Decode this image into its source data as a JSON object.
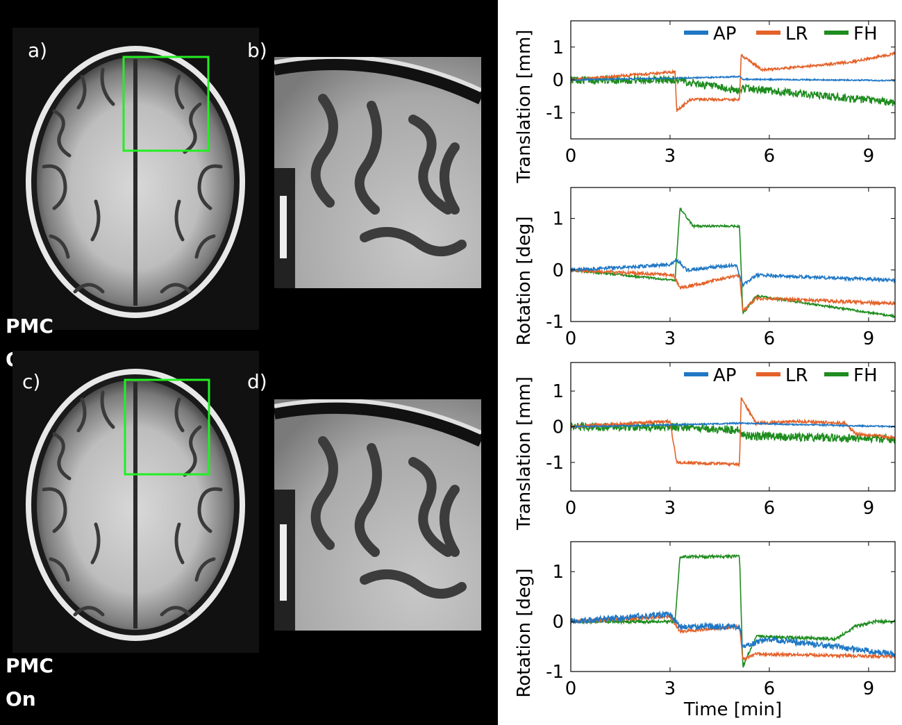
{
  "figure": {
    "panel_labels": [
      "a)",
      "b)",
      "c)",
      "d)"
    ],
    "pmc_off": {
      "line1": "PMC",
      "line2": "Off"
    },
    "pmc_on": {
      "line1": "PMC",
      "line2": "On"
    },
    "roi_color": "#22ee22"
  },
  "chart_data": [
    {
      "id": "off-translation",
      "type": "line",
      "ylabel": "Translation [mm]",
      "xlabel": "",
      "xlim": [
        0,
        9.8
      ],
      "ylim": [
        -1.8,
        1.8
      ],
      "xticks": [
        0,
        3,
        6,
        9
      ],
      "yticks": [
        -1,
        0,
        1
      ],
      "legend": true,
      "legend_position": "top",
      "series": [
        {
          "name": "AP",
          "color": "#1f77c4",
          "noise": 0.02,
          "points": [
            [
              0,
              0
            ],
            [
              3,
              0.05
            ],
            [
              4.5,
              0.08
            ],
            [
              5.1,
              0.1
            ],
            [
              5.2,
              0.02
            ],
            [
              9.8,
              -0.02
            ]
          ]
        },
        {
          "name": "LR",
          "color": "#e4622a",
          "noise": 0.04,
          "points": [
            [
              0,
              0
            ],
            [
              3.15,
              0.25
            ],
            [
              3.2,
              -0.95
            ],
            [
              3.6,
              -0.6
            ],
            [
              5.1,
              -0.6
            ],
            [
              5.15,
              0.75
            ],
            [
              5.8,
              0.3
            ],
            [
              7,
              0.4
            ],
            [
              8.5,
              0.55
            ],
            [
              9.8,
              0.8
            ]
          ]
        },
        {
          "name": "FH",
          "color": "#1e8c1e",
          "noise": 0.12,
          "points": [
            [
              0,
              0
            ],
            [
              3.2,
              0
            ],
            [
              5.1,
              -0.35
            ],
            [
              5.2,
              -0.25
            ],
            [
              9.8,
              -0.7
            ]
          ]
        }
      ]
    },
    {
      "id": "off-rotation",
      "type": "line",
      "ylabel": "Rotation [deg]",
      "xlabel": "",
      "xlim": [
        0,
        9.8
      ],
      "ylim": [
        -1,
        1.6
      ],
      "xticks": [
        0,
        3,
        6,
        9
      ],
      "yticks": [
        -1,
        0,
        1
      ],
      "legend": false,
      "series": [
        {
          "name": "AP",
          "color": "#1f77c4",
          "noise": 0.03,
          "points": [
            [
              0,
              0
            ],
            [
              3,
              0.1
            ],
            [
              3.2,
              0.2
            ],
            [
              3.5,
              0
            ],
            [
              5,
              0.1
            ],
            [
              5.2,
              -0.3
            ],
            [
              5.6,
              -0.1
            ],
            [
              9.8,
              -0.2
            ]
          ]
        },
        {
          "name": "LR",
          "color": "#e4622a",
          "noise": 0.03,
          "points": [
            [
              0,
              0
            ],
            [
              3.1,
              -0.1
            ],
            [
              3.3,
              -0.35
            ],
            [
              5.1,
              -0.1
            ],
            [
              5.2,
              -0.8
            ],
            [
              5.6,
              -0.55
            ],
            [
              9.8,
              -0.65
            ]
          ]
        },
        {
          "name": "FH",
          "color": "#1e8c1e",
          "noise": 0.02,
          "points": [
            [
              0,
              0
            ],
            [
              3.15,
              -0.2
            ],
            [
              3.3,
              1.2
            ],
            [
              3.7,
              0.85
            ],
            [
              5.1,
              0.85
            ],
            [
              5.2,
              -0.85
            ],
            [
              5.6,
              -0.5
            ],
            [
              9.8,
              -0.9
            ]
          ]
        }
      ]
    },
    {
      "id": "on-translation",
      "type": "line",
      "ylabel": "Translation [mm]",
      "xlabel": "",
      "xlim": [
        0,
        9.8
      ],
      "ylim": [
        -1.8,
        1.8
      ],
      "xticks": [
        0,
        3,
        6,
        9
      ],
      "yticks": [
        -1,
        0,
        1
      ],
      "legend": true,
      "legend_position": "top",
      "series": [
        {
          "name": "AP",
          "color": "#1f77c4",
          "noise": 0.02,
          "points": [
            [
              0,
              0
            ],
            [
              3,
              0.05
            ],
            [
              5.1,
              0.1
            ],
            [
              9.8,
              0
            ]
          ]
        },
        {
          "name": "LR",
          "color": "#e4622a",
          "noise": 0.04,
          "points": [
            [
              0,
              0
            ],
            [
              3,
              0.15
            ],
            [
              3.2,
              -1.0
            ],
            [
              5.1,
              -1.05
            ],
            [
              5.15,
              0.8
            ],
            [
              5.6,
              0.1
            ],
            [
              7,
              0.15
            ],
            [
              8.3,
              0.1
            ],
            [
              8.6,
              -0.2
            ],
            [
              9.8,
              -0.3
            ]
          ]
        },
        {
          "name": "FH",
          "color": "#1e8c1e",
          "noise": 0.12,
          "points": [
            [
              0,
              0
            ],
            [
              3.2,
              0
            ],
            [
              5.1,
              -0.1
            ],
            [
              5.2,
              -0.25
            ],
            [
              9.8,
              -0.35
            ]
          ]
        }
      ]
    },
    {
      "id": "on-rotation",
      "type": "line",
      "ylabel": "Rotation [deg]",
      "xlabel": "Time [min]",
      "xlim": [
        0,
        9.8
      ],
      "ylim": [
        -1,
        1.6
      ],
      "xticks": [
        0,
        3,
        6,
        9
      ],
      "yticks": [
        -1,
        0,
        1
      ],
      "legend": false,
      "series": [
        {
          "name": "AP",
          "color": "#1f77c4",
          "noise": 0.06,
          "points": [
            [
              0,
              0
            ],
            [
              3,
              0.15
            ],
            [
              3.3,
              -0.1
            ],
            [
              5.1,
              -0.1
            ],
            [
              5.2,
              -0.5
            ],
            [
              6,
              -0.35
            ],
            [
              9.8,
              -0.65
            ]
          ]
        },
        {
          "name": "LR",
          "color": "#e4622a",
          "noise": 0.03,
          "points": [
            [
              0,
              0
            ],
            [
              3,
              0.1
            ],
            [
              3.3,
              -0.2
            ],
            [
              5.1,
              -0.1
            ],
            [
              5.2,
              -0.75
            ],
            [
              5.6,
              -0.65
            ],
            [
              9.8,
              -0.7
            ]
          ]
        },
        {
          "name": "FH",
          "color": "#1e8c1e",
          "noise": 0.03,
          "points": [
            [
              0,
              0
            ],
            [
              3.15,
              0
            ],
            [
              3.3,
              1.3
            ],
            [
              5.1,
              1.3
            ],
            [
              5.2,
              -0.9
            ],
            [
              5.6,
              -0.3
            ],
            [
              8,
              -0.35
            ],
            [
              8.6,
              -0.1
            ],
            [
              9.2,
              0
            ],
            [
              9.8,
              0
            ]
          ]
        }
      ]
    }
  ]
}
